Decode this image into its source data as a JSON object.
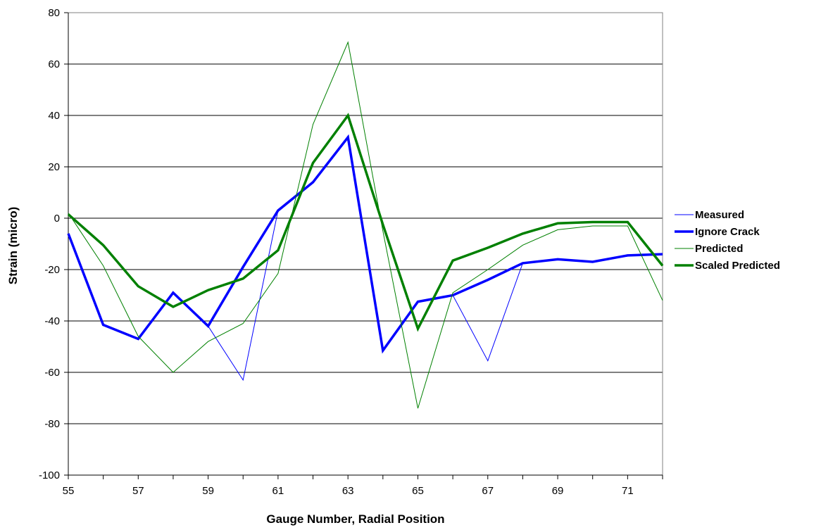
{
  "chart_data": {
    "type": "line",
    "title": "",
    "xlabel": "Gauge Number, Radial Position",
    "ylabel": "Strain (micro)",
    "x": [
      55,
      56,
      57,
      58,
      59,
      60,
      61,
      62,
      63,
      64,
      65,
      66,
      67,
      68,
      69,
      70,
      71,
      72
    ],
    "x_tick_labels": [
      "55",
      "57",
      "59",
      "61",
      "63",
      "65",
      "67",
      "69",
      "71"
    ],
    "x_tick_values": [
      55,
      57,
      59,
      61,
      63,
      65,
      67,
      69,
      71
    ],
    "xlim": [
      55,
      72
    ],
    "ylim": [
      -100,
      80
    ],
    "y_ticks": [
      -100,
      -80,
      -60,
      -40,
      -20,
      0,
      20,
      40,
      60,
      80
    ],
    "y_tick_labels": [
      "-100",
      "-80",
      "-60",
      "-40",
      "-20",
      "0",
      "20",
      "40",
      "60",
      "80"
    ],
    "grid": "horizontal",
    "legend_position": "right",
    "series": [
      {
        "name": "Measured",
        "color": "#0000ff",
        "weight": "thin",
        "values": [
          -6,
          -41.5,
          -47,
          -29,
          -42,
          -63,
          3,
          14,
          31.5,
          -51.5,
          -32.5,
          -30,
          -55.5,
          -17.5,
          -16,
          -17,
          -14.5,
          -14
        ]
      },
      {
        "name": "Ignore Crack",
        "color": "#0000ff",
        "weight": "thick",
        "values": [
          -6,
          -41.5,
          -47,
          -29,
          -42,
          -19,
          3,
          14,
          31.5,
          -51.5,
          -32.5,
          -30,
          -24,
          -17.5,
          -16,
          -17,
          -14.5,
          -14
        ]
      },
      {
        "name": "Predicted",
        "color": "#008000",
        "weight": "thin",
        "values": [
          2,
          -18.5,
          -46,
          -60,
          -48,
          -41,
          -21.5,
          36.5,
          68.5,
          -5,
          -74,
          -29,
          -20,
          -10.5,
          -4.5,
          -3,
          -3,
          -32
        ]
      },
      {
        "name": "Scaled Predicted",
        "color": "#008000",
        "weight": "thick",
        "values": [
          1.5,
          -10.5,
          -26.5,
          -34.5,
          -28,
          -23.5,
          -12.5,
          21.5,
          40,
          -2.5,
          -43,
          -16.5,
          -11.5,
          -6,
          -2,
          -1.5,
          -1.5,
          -18.5
        ]
      }
    ]
  }
}
